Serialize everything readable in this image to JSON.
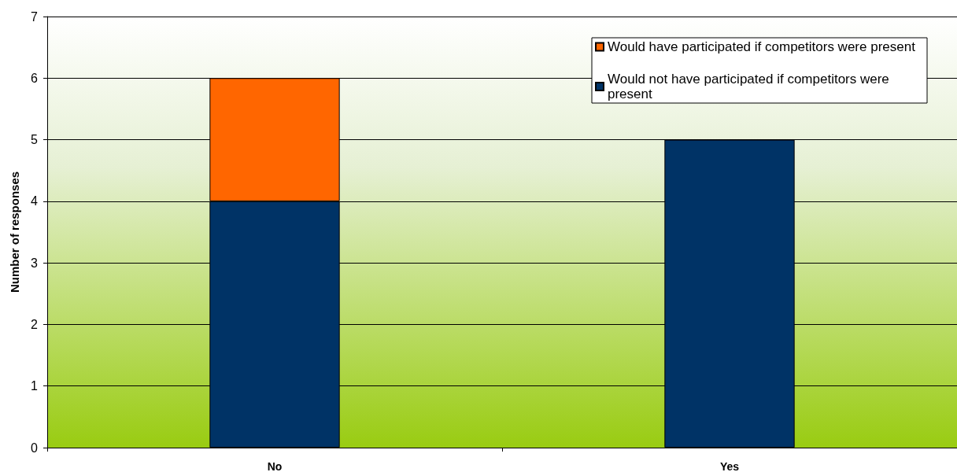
{
  "chart_data": {
    "type": "bar",
    "ylabel": "Number of responses",
    "categories": [
      "No",
      "Yes"
    ],
    "stacked": true,
    "series": [
      {
        "name": "Would not have participated if competitors were present",
        "color": "#003366",
        "values": [
          4,
          5
        ]
      },
      {
        "name": "Would have participated if competitors were present",
        "color": "#ff6600",
        "values": [
          2,
          null
        ]
      }
    ],
    "ylim": [
      0,
      7
    ],
    "yticks": [
      0,
      1,
      2,
      3,
      4,
      5,
      6,
      7
    ],
    "grid": "y",
    "legend": "top right"
  }
}
